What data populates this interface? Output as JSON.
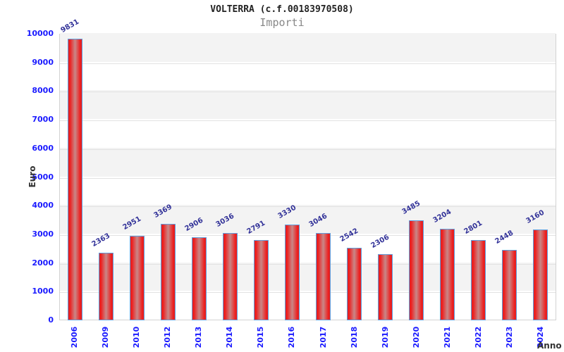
{
  "chart_data": {
    "type": "bar",
    "title": "VOLTERRA (c.f.00183970508)",
    "subtitle": "Importi",
    "xlabel": "Anno",
    "ylabel": "Euro",
    "categories": [
      "2006",
      "2009",
      "2010",
      "2012",
      "2013",
      "2014",
      "2015",
      "2016",
      "2017",
      "2018",
      "2019",
      "2020",
      "2021",
      "2022",
      "2023",
      "2024"
    ],
    "values": [
      9831,
      2363,
      2951,
      3369,
      2906,
      3036,
      2791,
      3330,
      3046,
      2542,
      2306,
      3485,
      3204,
      2801,
      2448,
      3160
    ],
    "ylim": [
      0,
      10000
    ],
    "ytick_step": 1000,
    "yticks": [
      0,
      1000,
      2000,
      3000,
      4000,
      5000,
      6000,
      7000,
      8000,
      9000,
      10000
    ],
    "grid": "horizontal-bands",
    "legend_position": "none",
    "colors": {
      "bar_edge": "#e02424",
      "bar_bright": "#ee1c1c",
      "bar_center": "#c98787",
      "bar_border": "#5f9ddc",
      "tick_label": "#1a1aff",
      "value_label": "#333399",
      "band_gray": "#f3f3f3",
      "band_white": "#ffffff",
      "gridline": "#e2e2e2",
      "plot_border": "#d2d2d2",
      "title": "#222222",
      "subtitle": "#888888",
      "axis_title": "#333333"
    }
  }
}
